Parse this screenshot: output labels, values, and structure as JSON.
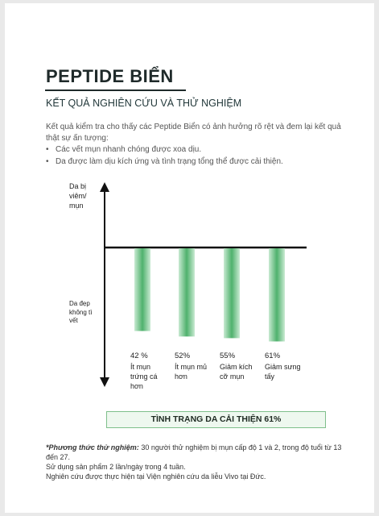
{
  "header": {
    "title": "PEPTIDE BIỂN",
    "subtitle": "KẾT QUẢ NGHIÊN CỨU VÀ THỬ NGHIỆM"
  },
  "intro": "Kết quả kiểm tra cho thấy các Peptide Biển có ảnh hưởng rõ rệt và đem lại kết quả thật sự ấn tượng:",
  "bullets": [
    "Các vết mụn nhanh chóng được xoa dịu.",
    "Da được làm dịu kích ứng và tình trạng tổng thể được cải thiện."
  ],
  "chart_data": {
    "type": "bar",
    "y_label_top": "Da bị viêm/ mụn",
    "y_label_bottom": "Da đẹp không tì vết",
    "categories": [
      "Ít mụn trứng cá hơn",
      "Ít mụn mủ hơn",
      "Giảm kích cỡ mụn",
      "Giảm sưng tấy"
    ],
    "values": [
      42,
      52,
      55,
      61
    ],
    "value_labels": [
      "42 %",
      "52%",
      "55%",
      "61%"
    ],
    "color": "#6cc083"
  },
  "banner": "TÌNH TRẠNG DA CẢI THIỆN 61%",
  "notes": {
    "lead": "*Phương thức thử nghiệm:",
    "text": " 30 người thử nghiệm bị mụn cấp độ 1 và 2, trong độ tuổi từ 13 đến 27.",
    "lines": [
      "Sử dụng sản phẩm 2 lần/ngày trong 4 tuần.",
      "Nghiên cứu được thực hiện tại Viện nghiên cứu da liễu Vivo tại Đức."
    ]
  }
}
